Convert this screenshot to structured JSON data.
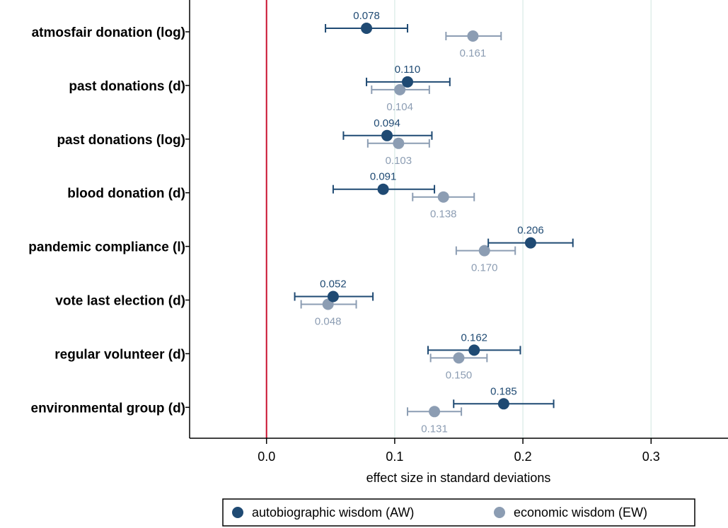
{
  "colors": {
    "aw": "#1f4a73",
    "ew": "#8c9db3",
    "zero_line": "#c8102e",
    "grid": "#e0eeea"
  },
  "chart_data": {
    "type": "scatter",
    "subtype": "coefficient-plot",
    "title": "",
    "xlabel": "effect size in standard deviations",
    "ylabel": "",
    "xlim": [
      -0.06,
      0.36
    ],
    "xticks": [
      0.0,
      0.1,
      0.2,
      0.3
    ],
    "xtick_labels": [
      "0.0",
      "0.1",
      "0.2",
      "0.3"
    ],
    "grid": true,
    "zero_line": 0.0,
    "legend_position": "bottom",
    "categories": [
      "atmosfair donation (log)",
      "past donations (d)",
      "past donations (log)",
      "blood donation (d)",
      "pandemic compliance (l)",
      "vote last election (d)",
      "regular volunteer (d)",
      "environmental group (d)"
    ],
    "series": [
      {
        "name": "autobiographic wisdom (AW)",
        "values": [
          0.078,
          0.11,
          0.094,
          0.091,
          0.206,
          0.052,
          0.162,
          0.185
        ],
        "labels": [
          "0.078",
          "0.110",
          "0.094",
          "0.091",
          "0.206",
          "0.052",
          "0.162",
          "0.185"
        ],
        "ci_low": [
          0.046,
          0.078,
          0.06,
          0.052,
          0.173,
          0.022,
          0.126,
          0.146
        ],
        "ci_high": [
          0.11,
          0.143,
          0.129,
          0.131,
          0.239,
          0.083,
          0.198,
          0.224
        ]
      },
      {
        "name": "economic wisdom (EW)",
        "values": [
          0.161,
          0.104,
          0.103,
          0.138,
          0.17,
          0.048,
          0.15,
          0.131
        ],
        "labels": [
          "0.161",
          "0.104",
          "0.103",
          "0.138",
          "0.170",
          "0.048",
          "0.150",
          "0.131"
        ],
        "ci_low": [
          0.14,
          0.082,
          0.079,
          0.114,
          0.148,
          0.027,
          0.128,
          0.11
        ],
        "ci_high": [
          0.183,
          0.127,
          0.127,
          0.162,
          0.194,
          0.07,
          0.172,
          0.152
        ]
      }
    ]
  }
}
